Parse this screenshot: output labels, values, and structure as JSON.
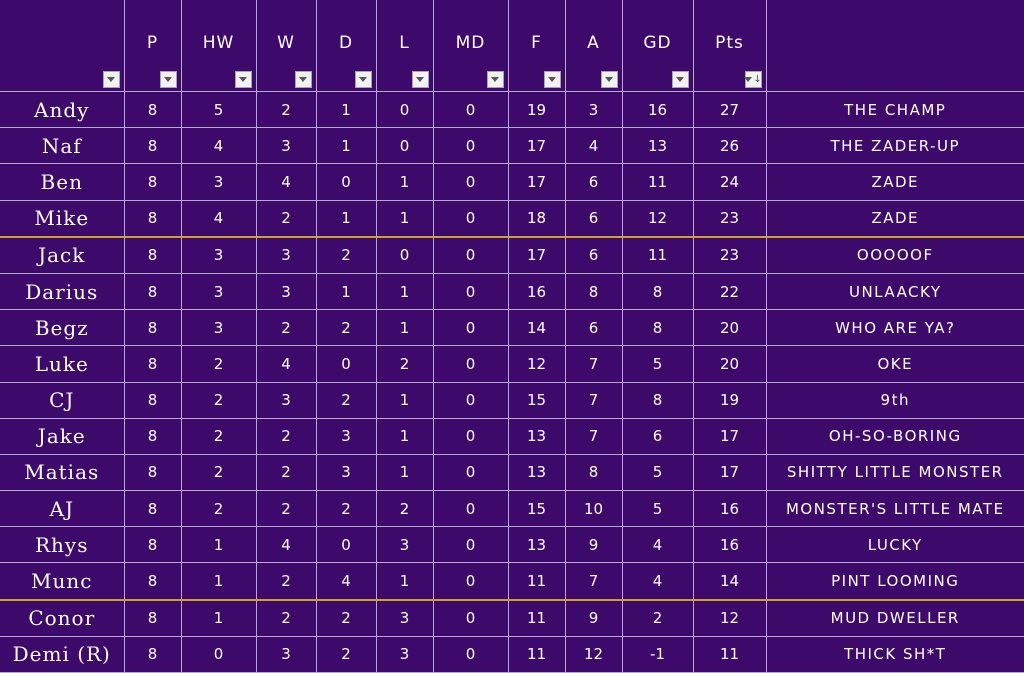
{
  "headers": [
    "",
    "P",
    "HW",
    "W",
    "D",
    "L",
    "MD",
    "F",
    "A",
    "GD",
    "Pts",
    ""
  ],
  "rows": [
    {
      "name": "Andy",
      "vals": [
        "8",
        "5",
        "2",
        "1",
        "0",
        "0",
        "19",
        "3",
        "16",
        "27"
      ],
      "tag": "THE CHAMP"
    },
    {
      "name": "Naf",
      "vals": [
        "8",
        "4",
        "3",
        "1",
        "0",
        "0",
        "17",
        "4",
        "13",
        "26"
      ],
      "tag": "THE ZADER-UP"
    },
    {
      "name": "Ben",
      "vals": [
        "8",
        "3",
        "4",
        "0",
        "1",
        "0",
        "17",
        "6",
        "11",
        "24"
      ],
      "tag": "ZADE"
    },
    {
      "name": "Mike",
      "vals": [
        "8",
        "4",
        "2",
        "1",
        "1",
        "0",
        "18",
        "6",
        "12",
        "23"
      ],
      "tag": "ZADE"
    },
    {
      "name": "Jack",
      "vals": [
        "8",
        "3",
        "3",
        "2",
        "0",
        "0",
        "17",
        "6",
        "11",
        "23"
      ],
      "tag": "OOOOOF"
    },
    {
      "name": "Darius",
      "vals": [
        "8",
        "3",
        "3",
        "1",
        "1",
        "0",
        "16",
        "8",
        "8",
        "22"
      ],
      "tag": "UNLAACKY"
    },
    {
      "name": "Begz",
      "vals": [
        "8",
        "3",
        "2",
        "2",
        "1",
        "0",
        "14",
        "6",
        "8",
        "20"
      ],
      "tag": "WHO ARE YA?"
    },
    {
      "name": "Luke",
      "vals": [
        "8",
        "2",
        "4",
        "0",
        "2",
        "0",
        "12",
        "7",
        "5",
        "20"
      ],
      "tag": "OKE"
    },
    {
      "name": "CJ",
      "vals": [
        "8",
        "2",
        "3",
        "2",
        "1",
        "0",
        "15",
        "7",
        "8",
        "19"
      ],
      "tag": "9th"
    },
    {
      "name": "Jake",
      "vals": [
        "8",
        "2",
        "2",
        "3",
        "1",
        "0",
        "13",
        "7",
        "6",
        "17"
      ],
      "tag": "OH-SO-BORING"
    },
    {
      "name": "Matias",
      "vals": [
        "8",
        "2",
        "2",
        "3",
        "1",
        "0",
        "13",
        "8",
        "5",
        "17"
      ],
      "tag": "SHITTY LITTLE MONSTER"
    },
    {
      "name": "AJ",
      "vals": [
        "8",
        "2",
        "2",
        "2",
        "2",
        "0",
        "15",
        "10",
        "5",
        "16"
      ],
      "tag": "MONSTER'S LITTLE MATE"
    },
    {
      "name": "Rhys",
      "vals": [
        "8",
        "1",
        "4",
        "0",
        "3",
        "0",
        "13",
        "9",
        "4",
        "16"
      ],
      "tag": "LUCKY"
    },
    {
      "name": "Munc",
      "vals": [
        "8",
        "1",
        "2",
        "4",
        "1",
        "0",
        "11",
        "7",
        "4",
        "14"
      ],
      "tag": "PINT LOOMING"
    },
    {
      "name": "Conor",
      "vals": [
        "8",
        "1",
        "2",
        "2",
        "3",
        "0",
        "11",
        "9",
        "2",
        "12"
      ],
      "tag": "MUD DWELLER"
    },
    {
      "name": "Demi (R)",
      "vals": [
        "8",
        "0",
        "3",
        "2",
        "3",
        "0",
        "11",
        "12",
        "-1",
        "11"
      ],
      "tag": "THICK SH*T"
    }
  ],
  "colors": {
    "background": "#3d0a6b",
    "grid": "#b7a8d0",
    "separator": "#c9a227",
    "text": "#ffffff"
  },
  "icons": {
    "filter": "filter-dropdown-icon",
    "sorted": "sort-descending-icon"
  }
}
